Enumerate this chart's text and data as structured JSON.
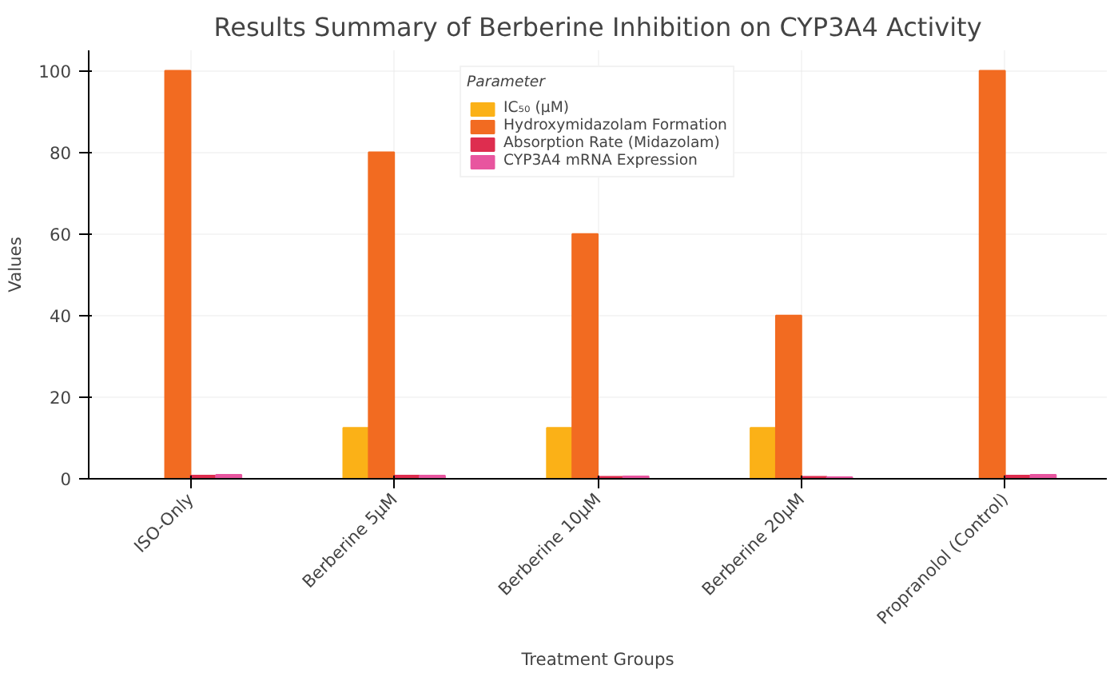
{
  "chart_data": {
    "type": "bar",
    "title": "Results Summary of Berberine Inhibition on CYP3A4 Activity",
    "xlabel": "Treatment Groups",
    "ylabel": "Values",
    "legend_title": "Parameter",
    "categories": [
      "ISO-Only",
      "Berberine 5μM",
      "Berberine 10μM",
      "Berberine 20μM",
      "Propranolol (Control)"
    ],
    "series": [
      {
        "name": "IC₅₀ (μM)",
        "color": "#fbb117",
        "values": [
          null,
          12.5,
          12.5,
          12.5,
          null
        ]
      },
      {
        "name": "Hydroxymidazolam Formation",
        "color": "#f26b21",
        "values": [
          100,
          80,
          60,
          40,
          100
        ]
      },
      {
        "name": "Absorption Rate (Midazolam)",
        "color": "#de2d4f",
        "values": [
          0.8,
          0.8,
          0.5,
          0.5,
          0.8
        ]
      },
      {
        "name": "CYP3A4 mRNA Expression",
        "color": "#e8559f",
        "values": [
          1.0,
          0.8,
          0.6,
          0.4,
          1.0
        ]
      }
    ],
    "ylim": [
      0,
      105
    ],
    "yticks": [
      0,
      20,
      40,
      60,
      80,
      100
    ],
    "grid": true,
    "legend": "top"
  }
}
